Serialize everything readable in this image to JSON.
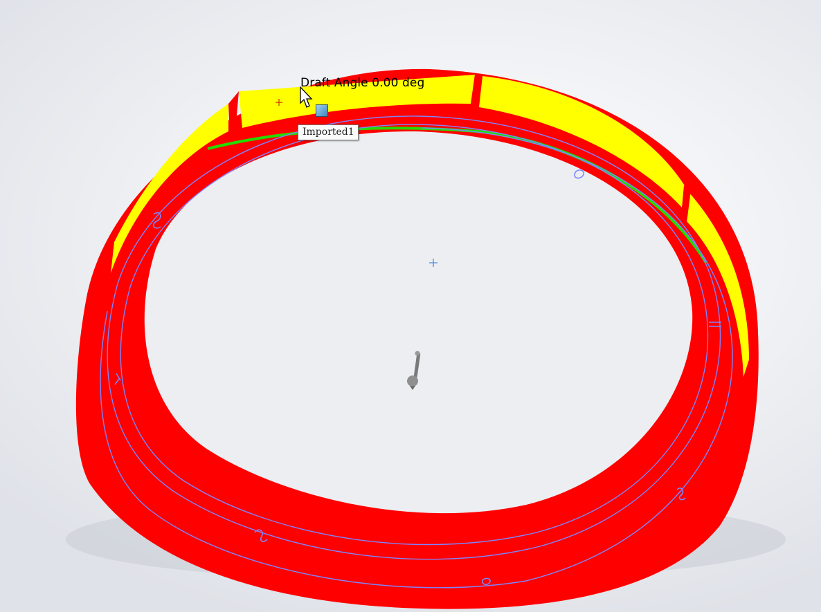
{
  "viewport": {
    "draft_label": "Draft Angle 0.00 deg",
    "tooltip": "Imported1"
  },
  "colors": {
    "background": "#eef0f4",
    "negative_draft": "#ff0000",
    "zero_draft": "#ffff00",
    "positive_draft": "#00cc00",
    "edge_lines": "#7c86ff"
  },
  "icons": [
    "selection-handle-icon",
    "mouse-cursor-icon",
    "origin-icon",
    "view-triad-icon"
  ]
}
